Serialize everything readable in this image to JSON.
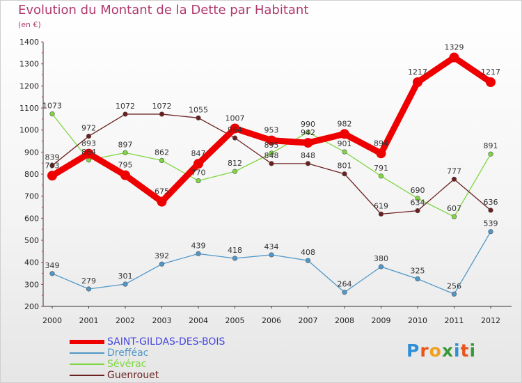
{
  "title": "Evolution du Montant de la Dette par Habitant",
  "unit_label": "(en €)",
  "logo": {
    "text": "Proxiti",
    "letter_colors": [
      "#2e8fd6",
      "#e8541a",
      "#f0a020",
      "#3a9a3a",
      "#2e8fd6",
      "#e8541a",
      "#3a9a3a"
    ]
  },
  "chart_data": {
    "type": "line",
    "x": [
      "2000",
      "2001",
      "2002",
      "2003",
      "2004",
      "2005",
      "2006",
      "2007",
      "2008",
      "2009",
      "2010",
      "2011",
      "2012"
    ],
    "y_ticks": [
      "200",
      "300",
      "400",
      "500",
      "600",
      "700",
      "800",
      "900",
      "1000",
      "1100",
      "1200",
      "1300",
      "1400"
    ],
    "ylim": [
      200,
      1400
    ],
    "grid": false,
    "legend_position": "bottom-left",
    "series": [
      {
        "name": "SAINT-GILDAS-DES-BOIS",
        "color": "#ee0000",
        "label_color": "#4444dd",
        "values": [
          793,
          893,
          795,
          675,
          847,
          1007,
          953,
          942,
          982,
          894,
          1217,
          1329,
          1217
        ]
      },
      {
        "name": "Drefféac",
        "color": "#4f97c8",
        "label_color": "#4f97c8",
        "values": [
          349,
          279,
          301,
          392,
          439,
          418,
          434,
          408,
          264,
          380,
          325,
          256,
          539
        ]
      },
      {
        "name": "Sévérac",
        "color": "#7fd640",
        "label_color": "#7fd640",
        "values": [
          1073,
          864,
          897,
          862,
          770,
          812,
          895,
          990,
          901,
          791,
          690,
          607,
          891
        ]
      },
      {
        "name": "Guenrouet",
        "color": "#6b1f1f",
        "label_color": "#6b1f1f",
        "values": [
          839,
          972,
          1072,
          1072,
          1055,
          964,
          848,
          848,
          801,
          619,
          634,
          777,
          636
        ]
      }
    ]
  }
}
